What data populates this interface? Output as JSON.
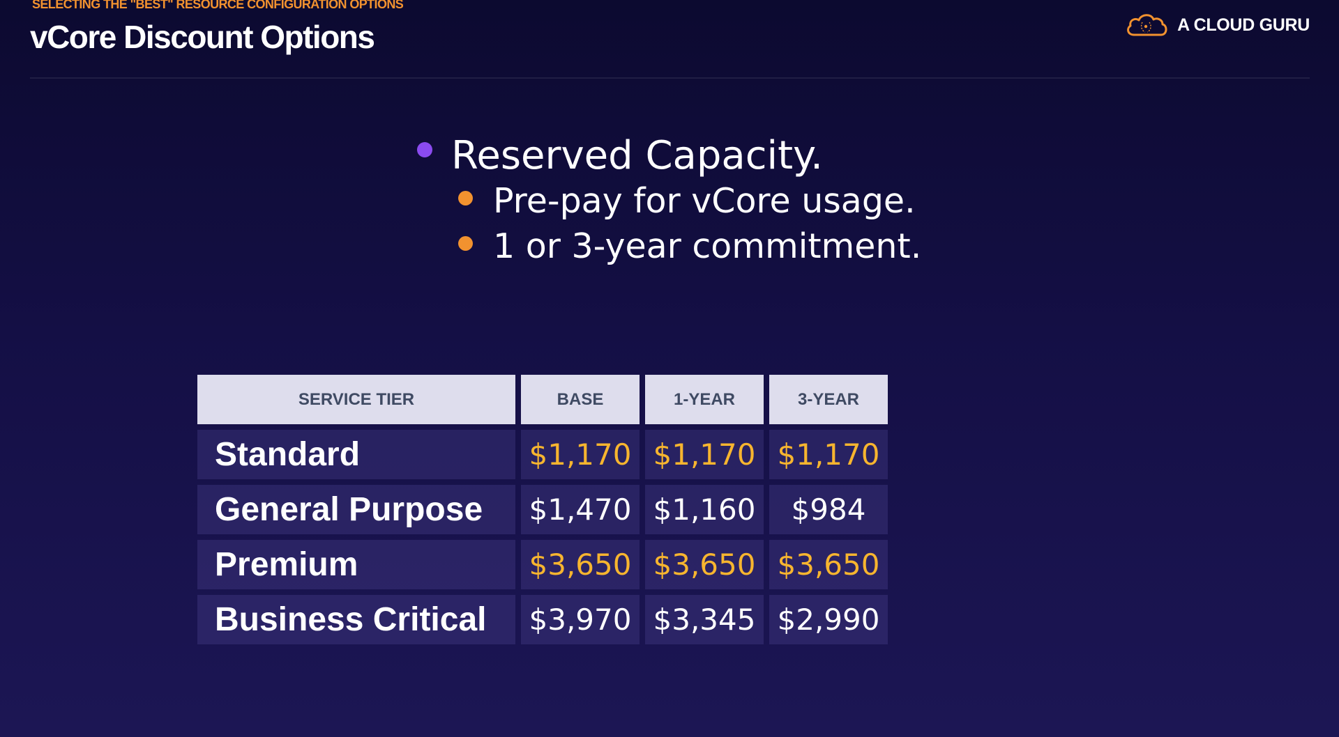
{
  "header": {
    "kicker": "SELECTING THE \"BEST\" RESOURCE CONFIGURATION OPTIONS",
    "title": "vCore Discount Options"
  },
  "logo": {
    "icon": "cloud-icon",
    "text": "A CLOUD GURU",
    "color": "#f2922f"
  },
  "bullets": {
    "main": "Reserved Capacity.",
    "sub": [
      "Pre-pay for vCore usage.",
      "1 or 3-year commitment."
    ]
  },
  "table": {
    "headers": [
      "SERVICE TIER",
      "BASE",
      "1-YEAR",
      "3-YEAR"
    ],
    "rows": [
      {
        "tier": "Standard",
        "base": "$1,170",
        "one_year": "$1,170",
        "three_year": "$1,170",
        "highlight": true
      },
      {
        "tier": "General Purpose",
        "base": "$1,470",
        "one_year": "$1,160",
        "three_year": "$984",
        "highlight": false
      },
      {
        "tier": "Premium",
        "base": "$3,650",
        "one_year": "$3,650",
        "three_year": "$3,650",
        "highlight": true
      },
      {
        "tier": "Business Critical",
        "base": "$3,970",
        "one_year": "$3,345",
        "three_year": "$2,990",
        "highlight": false
      }
    ]
  },
  "colors": {
    "background": "#140f45",
    "accent_orange": "#f2922f",
    "accent_purple": "#8b4bf0",
    "highlight_gold": "#f7b52f",
    "header_cell": "#dedded"
  }
}
